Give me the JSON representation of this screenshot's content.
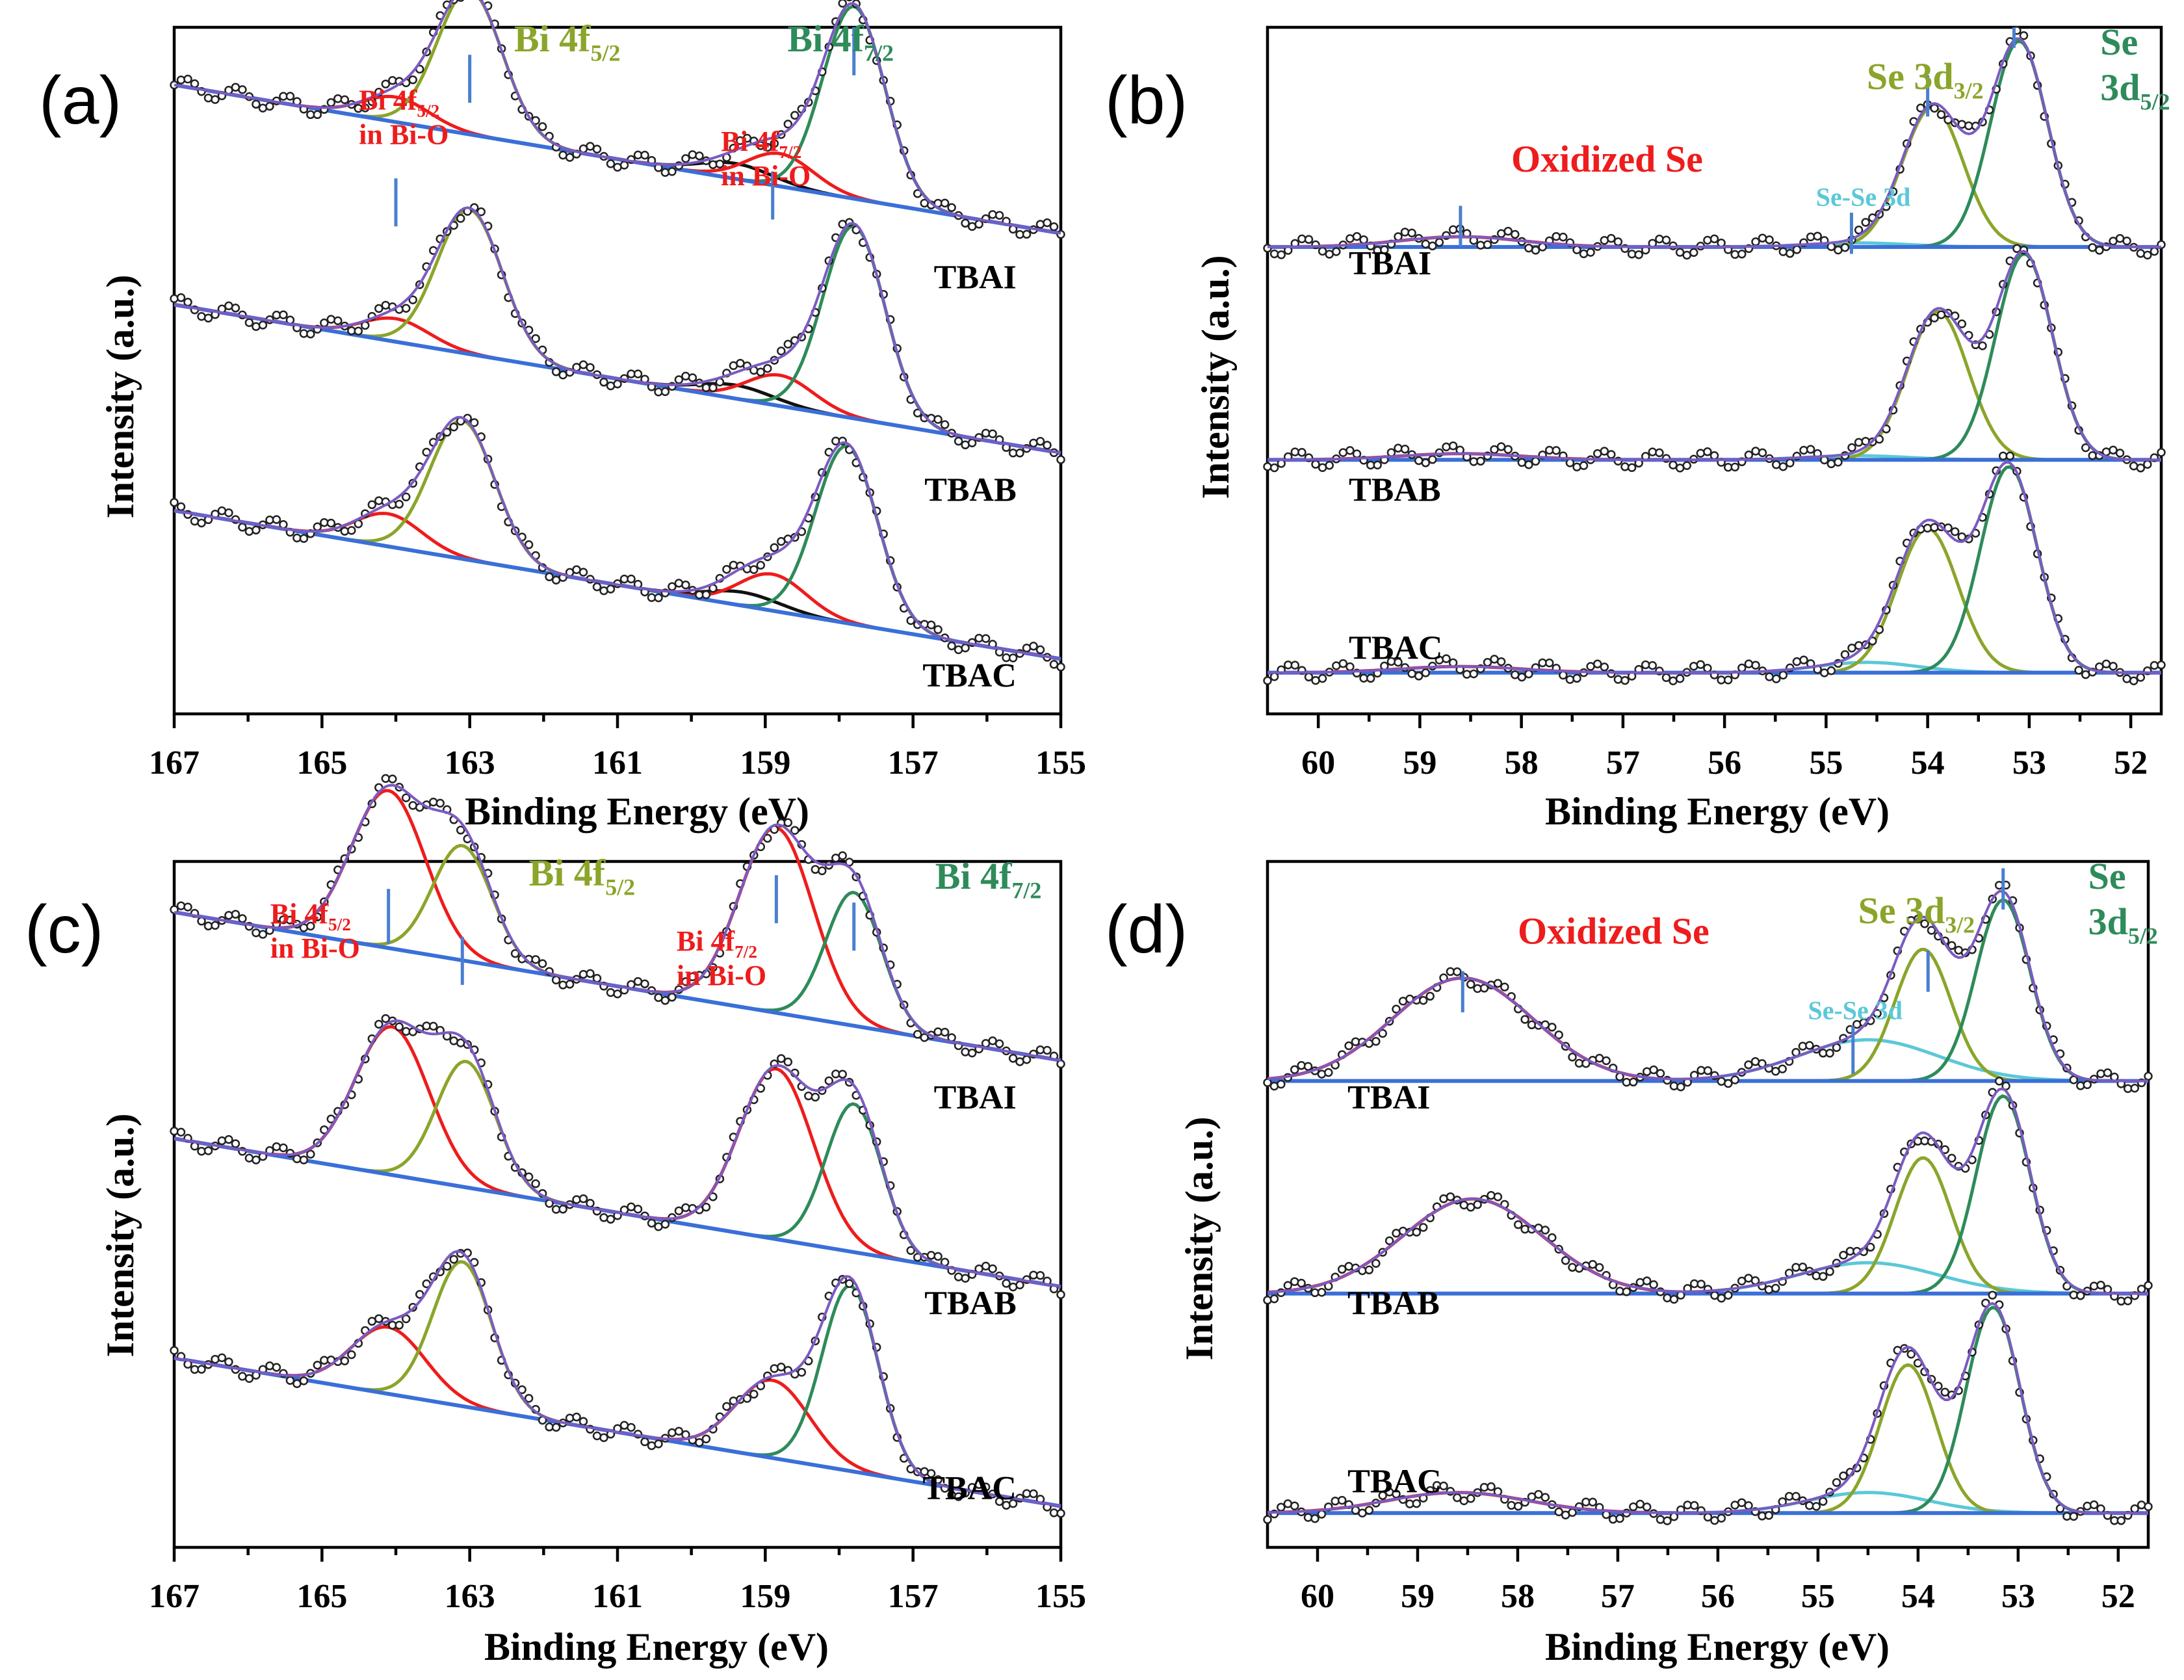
{
  "colors": {
    "red": "#ee1c1c",
    "olive": "#8aa52a",
    "green": "#2e8b5a",
    "black": "#111111",
    "cyan": "#5bc8d8",
    "baseline": "#3a6fd8",
    "envelope": "#7b5bc0",
    "marker": "#4a7fd0"
  },
  "chart_data": [
    {
      "id": "a",
      "type": "line",
      "panel_label": "(a)",
      "title": "",
      "xlabel": "Binding Energy (eV)",
      "ylabel": "Intensity (a.u.)",
      "xlim": [
        167,
        155
      ],
      "xticks": [
        "167",
        "165",
        "163",
        "161",
        "159",
        "157",
        "155"
      ],
      "tick_values": [
        167,
        165,
        163,
        161,
        159,
        157,
        155
      ],
      "annotations": [
        {
          "text": "Bi 4f",
          "sub": "5/2",
          "color_key": "red",
          "line2": "in Bi-O",
          "x": 164.5,
          "level": 0.88
        },
        {
          "text": "Bi 4f",
          "sub": "5/2",
          "color_key": "olive",
          "x": 162.4,
          "level": 0.965
        },
        {
          "text": "Bi 4f",
          "sub": "7/2",
          "color_key": "red",
          "line2": "in Bi-O",
          "x": 159.6,
          "level": 0.82
        },
        {
          "text": "Bi 4f",
          "sub": "7/2",
          "color_key": "green",
          "x": 158.7,
          "level": 0.965
        }
      ],
      "markers": [
        {
          "x": 164.0,
          "from": 0.71,
          "to": 0.78
        },
        {
          "x": 163.0,
          "from": 0.89,
          "to": 0.96
        },
        {
          "x": 158.9,
          "from": 0.72,
          "to": 0.79
        },
        {
          "x": 157.8,
          "from": 0.93,
          "to": 1.0
        }
      ],
      "samples": [
        {
          "name": "TBAI",
          "label_x": 155.6,
          "label_level": 0.62,
          "offset": 0.7,
          "scale": 0.28,
          "bg_slope": 0.018,
          "peaks": [
            {
              "center": 164.0,
              "height": 0.13,
              "width": 0.45,
              "color_key": "red"
            },
            {
              "center": 163.0,
              "height": 0.75,
              "width": 0.44,
              "color_key": "olive"
            },
            {
              "center": 159.4,
              "height": 0.08,
              "width": 0.5,
              "color_key": "black"
            },
            {
              "center": 158.8,
              "height": 0.17,
              "width": 0.45,
              "color_key": "red"
            },
            {
              "center": 157.8,
              "height": 1.0,
              "width": 0.42,
              "color_key": "green"
            }
          ]
        },
        {
          "name": "TBAB",
          "label_x": 155.6,
          "label_level": 0.31,
          "offset": 0.38,
          "scale": 0.28,
          "bg_slope": 0.018,
          "peaks": [
            {
              "center": 164.0,
              "height": 0.12,
              "width": 0.45,
              "color_key": "red"
            },
            {
              "center": 163.0,
              "height": 0.75,
              "width": 0.44,
              "color_key": "olive"
            },
            {
              "center": 159.4,
              "height": 0.07,
              "width": 0.5,
              "color_key": "black"
            },
            {
              "center": 158.8,
              "height": 0.16,
              "width": 0.45,
              "color_key": "red"
            },
            {
              "center": 157.8,
              "height": 1.0,
              "width": 0.42,
              "color_key": "green"
            }
          ]
        },
        {
          "name": "TBAC",
          "label_x": 155.6,
          "label_level": 0.04,
          "offset": 0.08,
          "scale": 0.28,
          "bg_slope": 0.018,
          "peaks": [
            {
              "center": 164.1,
              "height": 0.17,
              "width": 0.45,
              "color_key": "red"
            },
            {
              "center": 163.1,
              "height": 0.72,
              "width": 0.44,
              "color_key": "olive"
            },
            {
              "center": 159.3,
              "height": 0.07,
              "width": 0.5,
              "color_key": "black"
            },
            {
              "center": 158.9,
              "height": 0.19,
              "width": 0.45,
              "color_key": "red"
            },
            {
              "center": 157.9,
              "height": 0.92,
              "width": 0.42,
              "color_key": "green"
            }
          ]
        }
      ]
    },
    {
      "id": "b",
      "type": "line",
      "panel_label": "(b)",
      "title": "",
      "xlabel": "Binding Energy (eV)",
      "ylabel": "Intensity (a.u.)",
      "xlim": [
        60.5,
        51.7
      ],
      "xticks": [
        "60",
        "59",
        "58",
        "57",
        "56",
        "55",
        "54",
        "53",
        "52"
      ],
      "tick_values": [
        60,
        59,
        58,
        57,
        56,
        55,
        54,
        53,
        52
      ],
      "annotations": [
        {
          "text": "Oxidized Se",
          "color_key": "red",
          "x": 58.1,
          "level": 0.79
        },
        {
          "text": "Se 3d",
          "sub": "3/2",
          "color_key": "olive",
          "x": 54.6,
          "level": 0.91
        },
        {
          "text": "Se",
          "color_key": "green",
          "line2": "3d",
          "sub2": "5/2",
          "x": 52.3,
          "level": 0.96
        },
        {
          "text": "Se-Se 3d",
          "color_key": "cyan",
          "x": 55.1,
          "level": 0.74,
          "small": true
        }
      ],
      "markers": [
        {
          "x": 58.6,
          "from": 0.68,
          "to": 0.74
        },
        {
          "x": 54.75,
          "from": 0.67,
          "to": 0.73
        },
        {
          "x": 54.0,
          "from": 0.87,
          "to": 0.93
        },
        {
          "x": 53.15,
          "from": 0.97,
          "to": 1.0
        }
      ],
      "samples": [
        {
          "name": "TBAI",
          "label_x": 59.7,
          "label_level": 0.64,
          "offset": 0.68,
          "scale": 0.3,
          "bg_slope": 0.0,
          "peaks": [
            {
              "center": 58.6,
              "height": 0.05,
              "width": 0.6,
              "color_key": "red"
            },
            {
              "center": 54.7,
              "height": 0.02,
              "width": 0.5,
              "color_key": "cyan"
            },
            {
              "center": 53.95,
              "height": 0.68,
              "width": 0.3,
              "color_key": "olive"
            },
            {
              "center": 53.1,
              "height": 1.0,
              "width": 0.28,
              "color_key": "green"
            }
          ]
        },
        {
          "name": "TBAB",
          "label_x": 59.7,
          "label_level": 0.31,
          "offset": 0.37,
          "scale": 0.3,
          "bg_slope": 0.0,
          "peaks": [
            {
              "center": 58.6,
              "height": 0.03,
              "width": 0.6,
              "color_key": "red"
            },
            {
              "center": 54.7,
              "height": 0.02,
              "width": 0.5,
              "color_key": "cyan"
            },
            {
              "center": 53.9,
              "height": 0.72,
              "width": 0.3,
              "color_key": "olive"
            },
            {
              "center": 53.05,
              "height": 1.0,
              "width": 0.28,
              "color_key": "green"
            }
          ]
        },
        {
          "name": "TBAC",
          "label_x": 59.7,
          "label_level": 0.08,
          "offset": 0.06,
          "scale": 0.3,
          "bg_slope": 0.0,
          "peaks": [
            {
              "center": 58.6,
              "height": 0.03,
              "width": 0.6,
              "color_key": "red"
            },
            {
              "center": 54.6,
              "height": 0.05,
              "width": 0.5,
              "color_key": "cyan"
            },
            {
              "center": 54.0,
              "height": 0.7,
              "width": 0.3,
              "color_key": "olive"
            },
            {
              "center": 53.2,
              "height": 1.0,
              "width": 0.28,
              "color_key": "green"
            }
          ]
        }
      ]
    },
    {
      "id": "c",
      "type": "line",
      "panel_label": "(c)",
      "title": "",
      "xlabel": "Binding Energy (eV)",
      "ylabel": "Intensity (a.u.)",
      "xlim": [
        167,
        155
      ],
      "xticks": [
        "167",
        "165",
        "163",
        "161",
        "159",
        "157",
        "155"
      ],
      "tick_values": [
        167,
        165,
        163,
        161,
        159,
        157,
        155
      ],
      "annotations": [
        {
          "text": "Bi 4f",
          "sub": "5/2",
          "color_key": "red",
          "line2": "in Bi-O",
          "x": 165.7,
          "level": 0.91
        },
        {
          "text": "Bi 4f",
          "sub": "5/2",
          "color_key": "olive",
          "x": 162.2,
          "level": 0.965
        },
        {
          "text": "Bi 4f",
          "sub": "7/2",
          "color_key": "red",
          "line2": "in Bi-O",
          "x": 160.2,
          "level": 0.87
        },
        {
          "text": "Bi 4f",
          "sub": "7/2",
          "color_key": "green",
          "x": 156.7,
          "level": 0.96
        }
      ],
      "markers": [
        {
          "x": 164.1,
          "from": 0.88,
          "to": 0.96
        },
        {
          "x": 163.1,
          "from": 0.82,
          "to": 0.89
        },
        {
          "x": 158.85,
          "from": 0.91,
          "to": 0.98
        },
        {
          "x": 157.8,
          "from": 0.87,
          "to": 0.94
        }
      ],
      "samples": [
        {
          "name": "TBAI",
          "label_x": 155.6,
          "label_level": 0.64,
          "offset": 0.71,
          "scale": 0.27,
          "bg_slope": 0.018,
          "peaks": [
            {
              "center": 164.1,
              "height": 0.85,
              "width": 0.5,
              "color_key": "red"
            },
            {
              "center": 163.1,
              "height": 0.62,
              "width": 0.4,
              "color_key": "olive"
            },
            {
              "center": 158.85,
              "height": 1.0,
              "width": 0.5,
              "color_key": "red"
            },
            {
              "center": 157.8,
              "height": 0.72,
              "width": 0.38,
              "color_key": "green"
            }
          ]
        },
        {
          "name": "TBAB",
          "label_x": 155.6,
          "label_level": 0.34,
          "offset": 0.38,
          "scale": 0.27,
          "bg_slope": 0.018,
          "peaks": [
            {
              "center": 164.05,
              "height": 0.8,
              "width": 0.5,
              "color_key": "red"
            },
            {
              "center": 163.05,
              "height": 0.68,
              "width": 0.4,
              "color_key": "olive"
            },
            {
              "center": 158.85,
              "height": 0.92,
              "width": 0.5,
              "color_key": "red"
            },
            {
              "center": 157.8,
              "height": 0.8,
              "width": 0.38,
              "color_key": "green"
            }
          ]
        },
        {
          "name": "TBAC",
          "label_x": 155.6,
          "label_level": 0.07,
          "offset": 0.06,
          "scale": 0.27,
          "bg_slope": 0.018,
          "peaks": [
            {
              "center": 164.1,
              "height": 0.36,
              "width": 0.5,
              "color_key": "red"
            },
            {
              "center": 163.1,
              "height": 0.78,
              "width": 0.4,
              "color_key": "olive"
            },
            {
              "center": 158.9,
              "height": 0.42,
              "width": 0.5,
              "color_key": "red"
            },
            {
              "center": 157.85,
              "height": 1.0,
              "width": 0.38,
              "color_key": "green"
            }
          ]
        }
      ]
    },
    {
      "id": "d",
      "type": "line",
      "panel_label": "(d)",
      "title": "",
      "xlabel": "Binding Energy (eV)",
      "ylabel": "Intensity (a.u.)",
      "xlim": [
        60.5,
        51.7
      ],
      "xticks": [
        "60",
        "59",
        "58",
        "57",
        "56",
        "55",
        "54",
        "53",
        "52"
      ],
      "tick_values": [
        60,
        59,
        58,
        57,
        56,
        55,
        54,
        53,
        52
      ],
      "annotations": [
        {
          "text": "Oxidized Se",
          "color_key": "red",
          "x": 58.0,
          "level": 0.88
        },
        {
          "text": "Se 3d",
          "sub": "3/2",
          "color_key": "olive",
          "x": 54.6,
          "level": 0.91
        },
        {
          "text": "Se",
          "color_key": "green",
          "line2": "3d",
          "sub2": "5/2",
          "x": 52.3,
          "level": 0.96
        },
        {
          "text": "Se-Se 3d",
          "color_key": "cyan",
          "x": 55.1,
          "level": 0.77,
          "small": true
        }
      ],
      "markers": [
        {
          "x": 58.55,
          "from": 0.78,
          "to": 0.84
        },
        {
          "x": 54.65,
          "from": 0.69,
          "to": 0.76
        },
        {
          "x": 53.9,
          "from": 0.81,
          "to": 0.87
        },
        {
          "x": 53.15,
          "from": 0.93,
          "to": 0.99
        }
      ],
      "samples": [
        {
          "name": "TBAI",
          "label_x": 59.7,
          "label_level": 0.64,
          "offset": 0.68,
          "scale": 0.3,
          "bg_slope": 0.0,
          "peaks": [
            {
              "center": 58.55,
              "height": 0.5,
              "width": 0.7,
              "color_key": "red"
            },
            {
              "center": 54.5,
              "height": 0.2,
              "width": 0.7,
              "color_key": "cyan"
            },
            {
              "center": 53.95,
              "height": 0.64,
              "width": 0.28,
              "color_key": "olive"
            },
            {
              "center": 53.15,
              "height": 0.88,
              "width": 0.27,
              "color_key": "green"
            }
          ]
        },
        {
          "name": "TBAB",
          "label_x": 59.7,
          "label_level": 0.34,
          "offset": 0.37,
          "scale": 0.3,
          "bg_slope": 0.0,
          "peaks": [
            {
              "center": 58.45,
              "height": 0.46,
              "width": 0.7,
              "color_key": "red"
            },
            {
              "center": 54.5,
              "height": 0.15,
              "width": 0.7,
              "color_key": "cyan"
            },
            {
              "center": 53.95,
              "height": 0.66,
              "width": 0.28,
              "color_key": "olive"
            },
            {
              "center": 53.15,
              "height": 0.96,
              "width": 0.27,
              "color_key": "green"
            }
          ]
        },
        {
          "name": "TBAC",
          "label_x": 59.7,
          "label_level": 0.08,
          "offset": 0.05,
          "scale": 0.3,
          "bg_slope": 0.0,
          "peaks": [
            {
              "center": 58.6,
              "height": 0.1,
              "width": 0.7,
              "color_key": "red"
            },
            {
              "center": 54.5,
              "height": 0.1,
              "width": 0.6,
              "color_key": "cyan"
            },
            {
              "center": 54.1,
              "height": 0.72,
              "width": 0.28,
              "color_key": "olive"
            },
            {
              "center": 53.25,
              "height": 1.0,
              "width": 0.27,
              "color_key": "green"
            }
          ]
        }
      ]
    }
  ]
}
